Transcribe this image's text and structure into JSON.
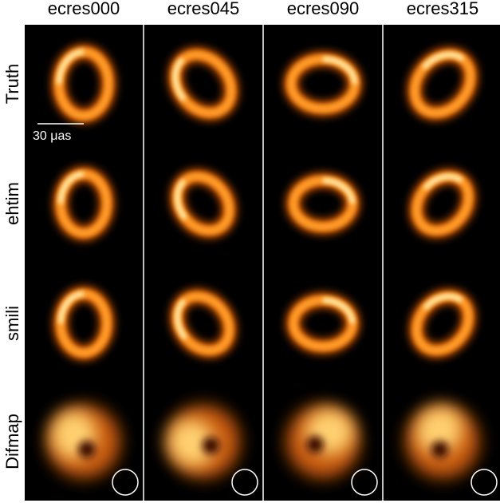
{
  "columns": [
    "ecres000",
    "ecres045",
    "ecres090",
    "ecres315"
  ],
  "rows": [
    "Truth",
    "ehtim",
    "smili",
    "Difmap"
  ],
  "scale_bar": {
    "label": "30 μas"
  }
}
